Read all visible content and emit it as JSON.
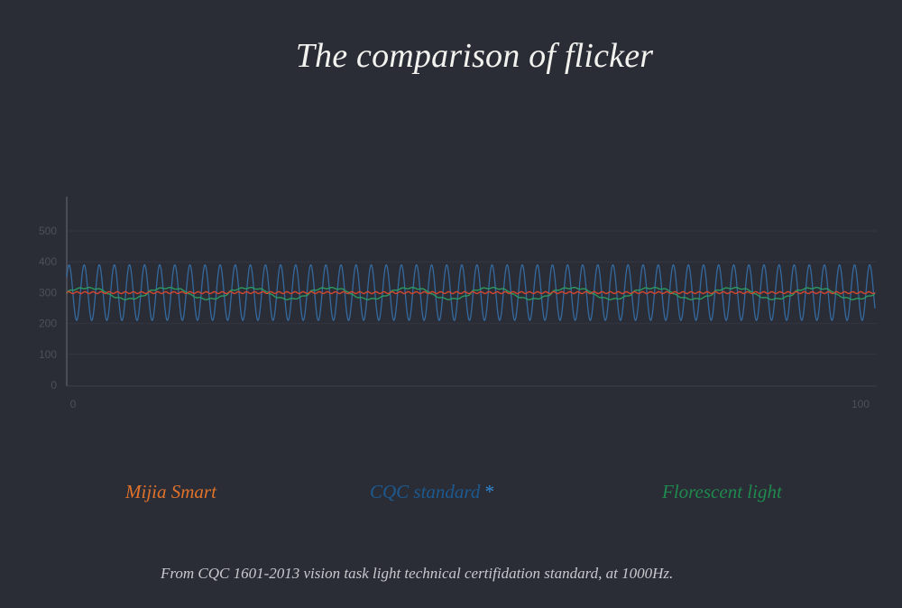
{
  "chart_data": {
    "type": "line",
    "title": "The comparison of flicker",
    "x_ticks": [
      "0",
      "100"
    ],
    "y_ticks": [
      "0",
      "100",
      "200",
      "300",
      "400",
      "500"
    ],
    "xlim": [
      0,
      100
    ],
    "ylim": [
      0,
      500
    ],
    "grid": true,
    "legend_placement": "bottom",
    "series": [
      {
        "name": "Mijia Smart",
        "color": "#e0722a",
        "line_color": "#d2452e",
        "pattern": "near-constant with tiny ripple",
        "mean": 300,
        "amplitude": 3,
        "cycles": 100
      },
      {
        "name": "CQC standard",
        "color": "#1d5a8f",
        "line_color": "#356a9e",
        "pattern": "sine",
        "mean": 300,
        "amplitude": 90,
        "cycles": 53.5
      },
      {
        "name": "Florescent light",
        "color": "#1f8a4e",
        "line_color": "#2c9a60",
        "pattern": "slow periodic wave",
        "mean": 297,
        "amplitude": 18,
        "cycles": 10
      }
    ]
  },
  "legend": {
    "asterisk": "*",
    "asterisk_color": "#2f8ad6"
  },
  "footnote": "From CQC 1601-2013 vision task light technical certifidation standard, at 1000Hz."
}
